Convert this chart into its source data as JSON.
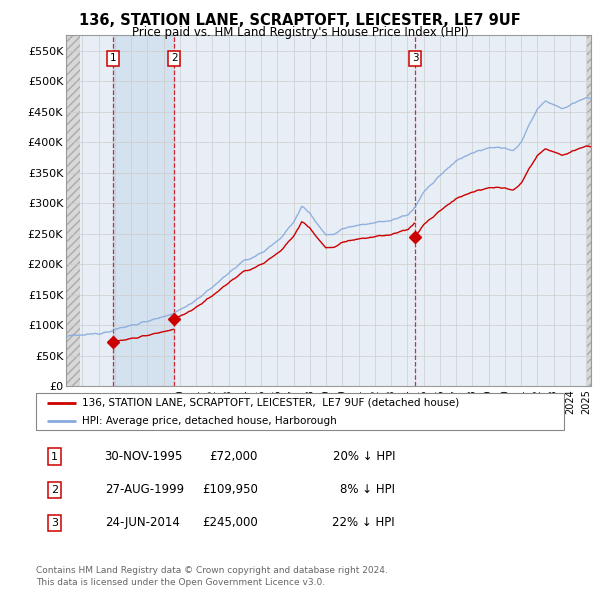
{
  "title": "136, STATION LANE, SCRAPTOFT, LEICESTER, LE7 9UF",
  "subtitle": "Price paid vs. HM Land Registry's House Price Index (HPI)",
  "ylim": [
    0,
    575000
  ],
  "yticks": [
    0,
    50000,
    100000,
    150000,
    200000,
    250000,
    300000,
    350000,
    400000,
    450000,
    500000,
    550000
  ],
  "ytick_labels": [
    "£0",
    "£50K",
    "£100K",
    "£150K",
    "£200K",
    "£250K",
    "£300K",
    "£350K",
    "£400K",
    "£450K",
    "£500K",
    "£550K"
  ],
  "sale_years_float": [
    1995.9167,
    1999.6583,
    2014.4833
  ],
  "sale_prices": [
    72000,
    109950,
    245000
  ],
  "sale_labels": [
    "1",
    "2",
    "3"
  ],
  "sale_color": "#cc0000",
  "hpi_color": "#88aadd",
  "legend_line1": "136, STATION LANE, SCRAPTOFT, LEICESTER,  LE7 9UF (detached house)",
  "legend_line2": "HPI: Average price, detached house, Harborough",
  "table_rows": [
    [
      "1",
      "30-NOV-1995",
      "£72,000",
      "20% ↓ HPI"
    ],
    [
      "2",
      "27-AUG-1999",
      "£109,950",
      "8% ↓ HPI"
    ],
    [
      "3",
      "24-JUN-2014",
      "£245,000",
      "22% ↓ HPI"
    ]
  ],
  "footer": "Contains HM Land Registry data © Crown copyright and database right 2024.\nThis data is licensed under the Open Government Licence v3.0.",
  "grid_color": "#cccccc",
  "xlim_start": 1993.0,
  "xlim_end": 2025.3,
  "hpi_anchors_x": [
    1993.0,
    1994.0,
    1995.0,
    1996.0,
    1997.0,
    1998.0,
    1999.0,
    2000.0,
    2001.0,
    2002.0,
    2003.0,
    2004.0,
    2005.0,
    2006.0,
    2007.0,
    2007.5,
    2008.0,
    2008.5,
    2009.0,
    2009.5,
    2010.0,
    2010.5,
    2011.0,
    2012.0,
    2013.0,
    2014.0,
    2014.5,
    2015.0,
    2016.0,
    2017.0,
    2018.0,
    2019.0,
    2020.0,
    2020.5,
    2021.0,
    2021.5,
    2022.0,
    2022.5,
    2023.0,
    2023.5,
    2024.0,
    2024.5,
    2025.0,
    2025.3
  ],
  "hpi_anchors_y": [
    82000,
    84000,
    87000,
    93000,
    100000,
    107000,
    113000,
    125000,
    142000,
    162000,
    186000,
    206000,
    218000,
    238000,
    268000,
    295000,
    285000,
    265000,
    248000,
    250000,
    258000,
    262000,
    265000,
    268000,
    272000,
    280000,
    295000,
    318000,
    345000,
    370000,
    382000,
    390000,
    392000,
    385000,
    400000,
    428000,
    455000,
    468000,
    462000,
    455000,
    460000,
    468000,
    472000,
    470000
  ]
}
